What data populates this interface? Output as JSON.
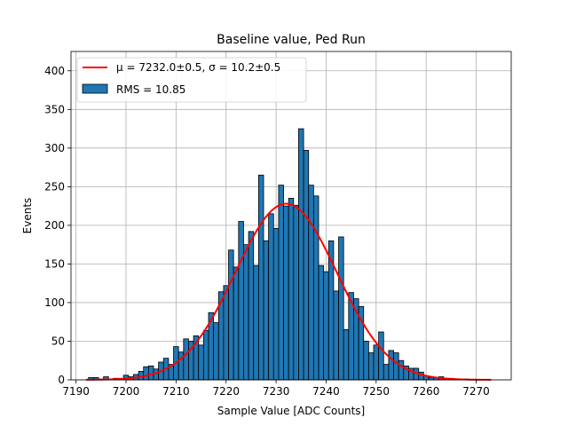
{
  "chart_data": {
    "type": "bar",
    "title": "Baseline value, Ped Run",
    "xlabel": "Sample Value [ADC Counts]",
    "ylabel": "Events",
    "xlim": [
      7189,
      7277
    ],
    "ylim": [
      0,
      425
    ],
    "xticks": [
      7190,
      7200,
      7210,
      7220,
      7230,
      7240,
      7250,
      7260,
      7270
    ],
    "yticks": [
      0,
      50,
      100,
      150,
      200,
      250,
      300,
      350,
      400
    ],
    "grid": true,
    "legend_position": "top-left",
    "bin_width": 1,
    "bins": [
      7193,
      7194,
      7195,
      7196,
      7197,
      7198,
      7199,
      7200,
      7201,
      7202,
      7203,
      7204,
      7205,
      7206,
      7207,
      7208,
      7209,
      7210,
      7211,
      7212,
      7213,
      7214,
      7215,
      7216,
      7217,
      7218,
      7219,
      7220,
      7221,
      7222,
      7223,
      7224,
      7225,
      7226,
      7227,
      7228,
      7229,
      7230,
      7231,
      7232,
      7233,
      7234,
      7235,
      7236,
      7237,
      7238,
      7239,
      7240,
      7241,
      7242,
      7243,
      7244,
      7245,
      7246,
      7247,
      7248,
      7249,
      7250,
      7251,
      7252,
      7253,
      7254,
      7255,
      7256,
      7257,
      7258,
      7259,
      7260,
      7261,
      7262,
      7263,
      7264,
      7265,
      7266,
      7267,
      7268,
      7269,
      7270,
      7271,
      7272
    ],
    "counts": [
      3,
      3,
      1,
      4,
      1,
      2,
      2,
      6,
      4,
      7,
      11,
      17,
      18,
      14,
      23,
      28,
      20,
      43,
      36,
      53,
      50,
      57,
      45,
      64,
      87,
      74,
      114,
      122,
      168,
      146,
      205,
      175,
      192,
      148,
      265,
      180,
      215,
      196,
      252,
      225,
      235,
      226,
      325,
      297,
      252,
      238,
      148,
      140,
      180,
      115,
      185,
      65,
      113,
      105,
      95,
      50,
      35,
      45,
      62,
      20,
      38,
      35,
      25,
      18,
      15,
      15,
      10,
      5,
      3,
      3,
      4,
      1,
      2,
      1,
      1,
      1,
      0,
      0,
      0,
      0
    ],
    "fit": {
      "mu": 7232.0,
      "sigma": 10.2,
      "amplitude": 228,
      "range": [
        7192,
        7273
      ]
    },
    "legend": [
      {
        "label": "μ = 7232.0±0.5, σ = 10.2±0.5",
        "color": "#ff0000",
        "kind": "line"
      },
      {
        "label": "RMS = 10.85",
        "color": "#1f77b4",
        "kind": "patch"
      }
    ],
    "colors": {
      "bar": "#1f77b4",
      "fit": "#ff0000"
    }
  }
}
